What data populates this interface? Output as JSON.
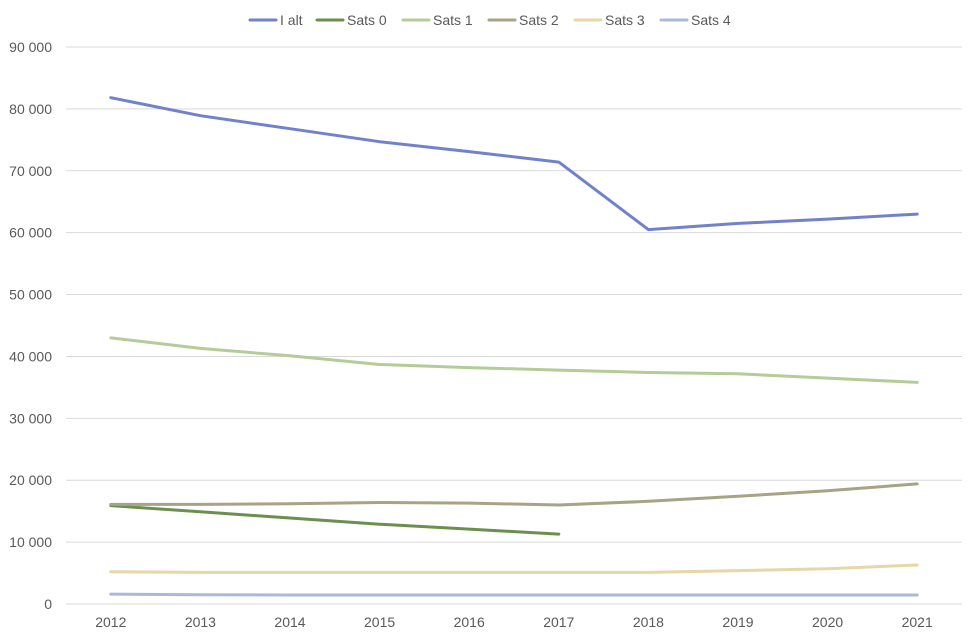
{
  "chart_data": {
    "type": "line",
    "categories": [
      "2012",
      "2013",
      "2014",
      "2015",
      "2016",
      "2017",
      "2018",
      "2019",
      "2020",
      "2021"
    ],
    "ylim": [
      0,
      90000
    ],
    "yticks": [
      0,
      10000,
      20000,
      30000,
      40000,
      50000,
      60000,
      70000,
      80000,
      90000
    ],
    "ytick_labels": [
      "0",
      "10 000",
      "20 000",
      "30 000",
      "40 000",
      "50 000",
      "60 000",
      "70 000",
      "80 000",
      "90 000"
    ],
    "grid": true,
    "legend_position": "top",
    "series": [
      {
        "name": "I alt",
        "color": "#7282c9",
        "values": [
          81800,
          78900,
          76800,
          74700,
          73100,
          71400,
          60500,
          61500,
          62200,
          63000
        ]
      },
      {
        "name": "Sats 0",
        "color": "#6b8f4e",
        "values": [
          15900,
          14900,
          13900,
          12900,
          12100,
          11300,
          null,
          null,
          null,
          null
        ]
      },
      {
        "name": "Sats 1",
        "color": "#b3cc98",
        "values": [
          43000,
          41300,
          40100,
          38700,
          38200,
          37800,
          37400,
          37200,
          36500,
          35800
        ]
      },
      {
        "name": "Sats 2",
        "color": "#a6a386",
        "values": [
          16100,
          16100,
          16200,
          16400,
          16300,
          16000,
          16600,
          17400,
          18300,
          19400
        ]
      },
      {
        "name": "Sats 3",
        "color": "#e6d6a8",
        "values": [
          5200,
          5100,
          5100,
          5100,
          5100,
          5100,
          5100,
          5400,
          5700,
          6300
        ]
      },
      {
        "name": "Sats 4",
        "color": "#a7bbd9",
        "values": [
          1600,
          1500,
          1450,
          1450,
          1450,
          1450,
          1450,
          1450,
          1450,
          1450
        ]
      }
    ]
  }
}
